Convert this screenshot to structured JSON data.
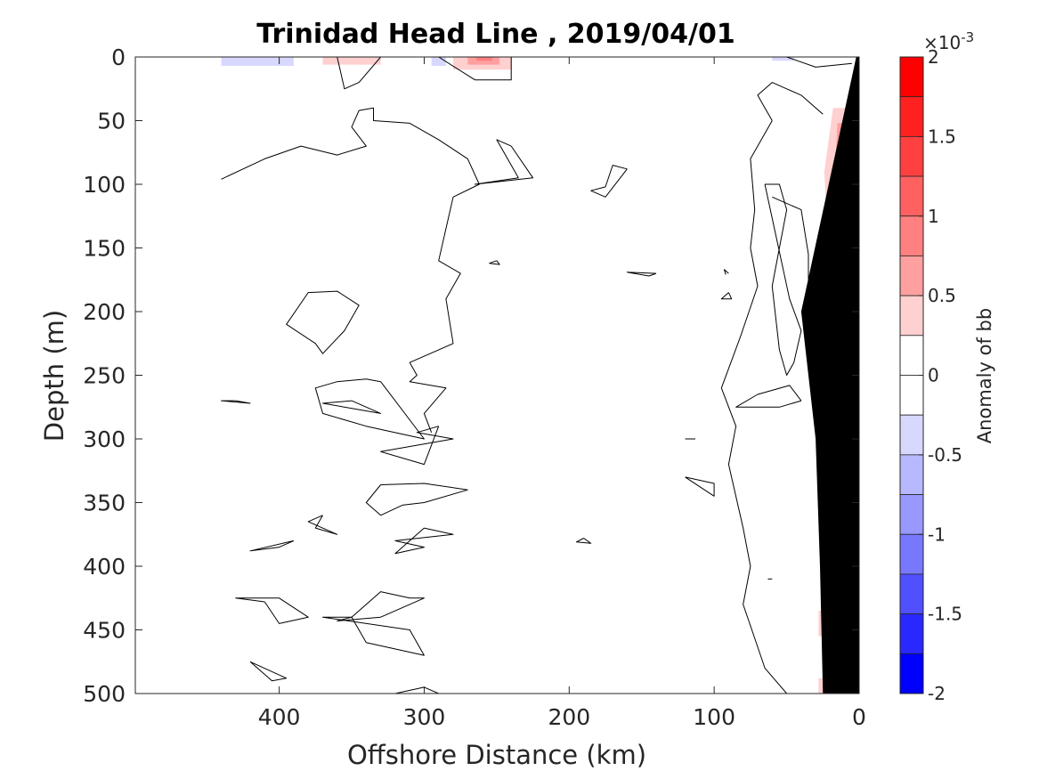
{
  "chart_data": {
    "type": "heatmap",
    "title": "Trinidad Head Line , 2019/04/01",
    "xlabel": "Offshore Distance (km)",
    "ylabel": "Depth (m)",
    "x_reversed": true,
    "y_reversed": true,
    "xlim": [
      0,
      490
    ],
    "ylim": [
      0,
      500
    ],
    "x_ticks": [
      400,
      300,
      200,
      100,
      0
    ],
    "y_ticks": [
      0,
      50,
      100,
      150,
      200,
      250,
      300,
      350,
      400,
      450,
      500
    ],
    "colorbar": {
      "label": "Anomaly of bb",
      "exponent_label": "×10",
      "exponent_power": "-3",
      "clim": [
        -2,
        2
      ],
      "tick_values": [
        2,
        1.5,
        1,
        0.5,
        0,
        -0.5,
        -1,
        -1.5,
        -2
      ],
      "tick_labels": [
        "2",
        "1.5",
        "1",
        "0.5",
        "0",
        "-0.5",
        "-1",
        "-1.5",
        "-2"
      ],
      "levels": [
        {
          "from": 1.75,
          "to": 2.0,
          "color": "#ff0000"
        },
        {
          "from": 1.5,
          "to": 1.75,
          "color": "#ff2020"
        },
        {
          "from": 1.25,
          "to": 1.5,
          "color": "#ff4040"
        },
        {
          "from": 1.0,
          "to": 1.25,
          "color": "#ff6060"
        },
        {
          "from": 0.75,
          "to": 1.0,
          "color": "#ff8080"
        },
        {
          "from": 0.5,
          "to": 0.75,
          "color": "#ffa0a0"
        },
        {
          "from": 0.25,
          "to": 0.5,
          "color": "#ffd0d0"
        },
        {
          "from": 0.0,
          "to": 0.25,
          "color": "#ffffff"
        },
        {
          "from": -0.25,
          "to": 0.0,
          "color": "#ffffff"
        },
        {
          "from": -0.5,
          "to": -0.25,
          "color": "#d8d8ff"
        },
        {
          "from": -0.75,
          "to": -0.5,
          "color": "#b8b8ff"
        },
        {
          "from": -1.0,
          "to": -0.75,
          "color": "#9898ff"
        },
        {
          "from": -1.25,
          "to": -1.0,
          "color": "#7878ff"
        },
        {
          "from": -1.5,
          "to": -1.25,
          "color": "#5050ff"
        },
        {
          "from": -1.75,
          "to": -1.5,
          "color": "#2828ff"
        },
        {
          "from": -2.0,
          "to": -1.75,
          "color": "#0000ff"
        }
      ]
    },
    "bathymetry": {
      "color": "#000000",
      "points": [
        [
          0,
          0
        ],
        [
          0,
          500
        ],
        [
          25,
          500
        ],
        [
          27,
          400
        ],
        [
          30,
          300
        ],
        [
          40,
          200
        ],
        [
          2,
          0
        ]
      ]
    },
    "anomaly_patches": [
      {
        "color": "#ffd0d0",
        "points": [
          [
            18,
            40
          ],
          [
            5,
            40
          ],
          [
            5,
            140
          ],
          [
            12,
            170
          ],
          [
            22,
            140
          ],
          [
            24,
            90
          ]
        ]
      },
      {
        "color": "#ffa0a0",
        "points": [
          [
            15,
            52
          ],
          [
            7,
            52
          ],
          [
            6,
            95
          ],
          [
            12,
            95
          ],
          [
            16,
            75
          ]
        ]
      },
      {
        "color": "#ff6060",
        "points": [
          [
            12,
            58
          ],
          [
            8,
            58
          ],
          [
            7,
            88
          ],
          [
            11,
            88
          ],
          [
            13,
            72
          ]
        ]
      },
      {
        "color": "#ff4040",
        "points": [
          [
            10,
            64
          ],
          [
            8,
            64
          ],
          [
            8,
            82
          ],
          [
            10,
            82
          ]
        ]
      },
      {
        "color": "#ffd0d0",
        "points": [
          [
            25,
            155
          ],
          [
            20,
            155
          ],
          [
            19,
            190
          ],
          [
            23,
            195
          ],
          [
            28,
            175
          ]
        ]
      },
      {
        "color": "#ffa0a0",
        "points": [
          [
            22,
            162
          ],
          [
            20,
            162
          ],
          [
            20,
            182
          ],
          [
            23,
            180
          ]
        ]
      },
      {
        "color": "#ffd0d0",
        "points": [
          [
            24,
            263
          ],
          [
            20,
            263
          ],
          [
            20,
            280
          ],
          [
            24,
            280
          ]
        ]
      },
      {
        "color": "#ffd0d0",
        "points": [
          [
            24,
            328
          ],
          [
            20,
            328
          ],
          [
            20,
            348
          ],
          [
            24,
            348
          ]
        ]
      },
      {
        "color": "#ffd0d0",
        "points": [
          [
            26,
            395
          ],
          [
            22,
            395
          ],
          [
            22,
            405
          ],
          [
            26,
            405
          ]
        ]
      },
      {
        "color": "#ffd0d0",
        "points": [
          [
            28,
            435
          ],
          [
            22,
            435
          ],
          [
            22,
            455
          ],
          [
            28,
            455
          ]
        ]
      },
      {
        "color": "#ffd0d0",
        "points": [
          [
            28,
            488
          ],
          [
            24,
            488
          ],
          [
            24,
            500
          ],
          [
            28,
            500
          ]
        ]
      },
      {
        "color": "#ffd0d0",
        "points": [
          [
            370,
            0
          ],
          [
            330,
            0
          ],
          [
            330,
            6
          ],
          [
            370,
            6
          ]
        ]
      },
      {
        "color": "#ffd0d0",
        "points": [
          [
            280,
            0
          ],
          [
            240,
            0
          ],
          [
            240,
            10
          ],
          [
            280,
            10
          ]
        ]
      },
      {
        "color": "#ffa0a0",
        "points": [
          [
            270,
            0
          ],
          [
            248,
            0
          ],
          [
            248,
            6
          ],
          [
            270,
            6
          ]
        ]
      },
      {
        "color": "#ff8080",
        "points": [
          [
            264,
            0
          ],
          [
            253,
            0
          ],
          [
            253,
            3
          ],
          [
            264,
            3
          ]
        ]
      },
      {
        "color": "#d8d8ff",
        "points": [
          [
            440,
            0
          ],
          [
            390,
            0
          ],
          [
            390,
            7
          ],
          [
            440,
            7
          ]
        ]
      },
      {
        "color": "#d8d8ff",
        "points": [
          [
            295,
            0
          ],
          [
            285,
            0
          ],
          [
            285,
            7
          ],
          [
            295,
            7
          ]
        ]
      },
      {
        "color": "#d8d8ff",
        "points": [
          [
            60,
            0
          ],
          [
            45,
            0
          ],
          [
            45,
            3
          ],
          [
            60,
            3
          ]
        ]
      }
    ],
    "zero_contours": [
      [
        [
          440,
          96
        ],
        [
          410,
          80
        ],
        [
          385,
          70
        ],
        [
          360,
          77
        ],
        [
          340,
          70
        ],
        [
          350,
          55
        ],
        [
          345,
          42
        ],
        [
          335,
          40
        ],
        [
          335,
          50
        ],
        [
          310,
          52
        ],
        [
          290,
          65
        ],
        [
          270,
          80
        ],
        [
          262,
          100
        ],
        [
          280,
          110
        ],
        [
          290,
          160
        ],
        [
          275,
          170
        ],
        [
          285,
          190
        ],
        [
          280,
          225
        ],
        [
          310,
          240
        ],
        [
          305,
          250
        ],
        [
          310,
          255
        ],
        [
          285,
          260
        ],
        [
          300,
          280
        ],
        [
          295,
          295
        ]
      ],
      [
        [
          330,
          0
        ],
        [
          345,
          20
        ],
        [
          355,
          25
        ],
        [
          360,
          0
        ]
      ],
      [
        [
          290,
          0
        ],
        [
          265,
          18
        ],
        [
          240,
          18
        ],
        [
          240,
          0
        ]
      ],
      [
        [
          68,
          0
        ],
        [
          80,
          0
        ],
        [
          90,
          0
        ]
      ],
      [
        [
          50,
          0
        ],
        [
          30,
          8
        ],
        [
          5,
          5
        ]
      ],
      [
        [
          60,
          50
        ],
        [
          65,
          40
        ],
        [
          70,
          30
        ],
        [
          60,
          20
        ],
        [
          50,
          25
        ],
        [
          40,
          30
        ],
        [
          25,
          45
        ]
      ],
      [
        [
          60,
          50
        ],
        [
          75,
          80
        ],
        [
          72,
          120
        ],
        [
          75,
          150
        ],
        [
          70,
          180
        ],
        [
          82,
          220
        ],
        [
          95,
          260
        ],
        [
          85,
          290
        ],
        [
          90,
          320
        ],
        [
          80,
          370
        ],
        [
          75,
          400
        ],
        [
          80,
          430
        ],
        [
          65,
          480
        ],
        [
          50,
          500
        ]
      ],
      [
        [
          240,
          70
        ],
        [
          250,
          65
        ],
        [
          235,
          95
        ],
        [
          265,
          100
        ],
        [
          225,
          95
        ],
        [
          240,
          70
        ]
      ],
      [
        [
          160,
          88
        ],
        [
          170,
          85
        ],
        [
          175,
          102
        ],
        [
          185,
          105
        ],
        [
          175,
          110
        ],
        [
          160,
          88
        ]
      ],
      [
        [
          65,
          100
        ],
        [
          55,
          100
        ],
        [
          50,
          120
        ],
        [
          55,
          150
        ],
        [
          60,
          180
        ],
        [
          55,
          230
        ],
        [
          50,
          250
        ],
        [
          45,
          240
        ],
        [
          40,
          215
        ],
        [
          48,
          190
        ],
        [
          65,
          100
        ]
      ],
      [
        [
          60,
          110
        ],
        [
          40,
          120
        ],
        [
          35,
          155
        ],
        [
          35,
          195
        ],
        [
          20,
          210
        ]
      ],
      [
        [
          40,
          270
        ],
        [
          48,
          258
        ],
        [
          70,
          265
        ],
        [
          85,
          275
        ],
        [
          55,
          275
        ],
        [
          40,
          270
        ]
      ],
      [
        [
          380,
          185
        ],
        [
          360,
          184
        ],
        [
          345,
          195
        ],
        [
          355,
          215
        ],
        [
          370,
          233
        ],
        [
          375,
          225
        ],
        [
          395,
          210
        ],
        [
          380,
          185
        ]
      ],
      [
        [
          330,
          255
        ],
        [
          340,
          253
        ],
        [
          360,
          255
        ],
        [
          375,
          260
        ],
        [
          370,
          280
        ],
        [
          340,
          290
        ],
        [
          300,
          300
        ],
        [
          330,
          255
        ]
      ],
      [
        [
          350,
          270
        ],
        [
          370,
          272
        ],
        [
          330,
          280
        ],
        [
          350,
          270
        ]
      ],
      [
        [
          290,
          290
        ],
        [
          305,
          295
        ],
        [
          280,
          300
        ],
        [
          330,
          310
        ],
        [
          300,
          320
        ],
        [
          290,
          290
        ]
      ],
      [
        [
          330,
          336
        ],
        [
          300,
          335
        ],
        [
          270,
          340
        ],
        [
          300,
          350
        ],
        [
          315,
          352
        ],
        [
          330,
          360
        ],
        [
          340,
          350
        ],
        [
          330,
          336
        ]
      ],
      [
        [
          370,
          360
        ],
        [
          380,
          365
        ],
        [
          360,
          375
        ],
        [
          375,
          370
        ],
        [
          370,
          360
        ]
      ],
      [
        [
          300,
          370
        ],
        [
          280,
          375
        ],
        [
          320,
          380
        ],
        [
          300,
          385
        ],
        [
          320,
          390
        ],
        [
          300,
          370
        ]
      ],
      [
        [
          310,
          425
        ],
        [
          300,
          425
        ],
        [
          330,
          440
        ],
        [
          360,
          443
        ],
        [
          350,
          440
        ],
        [
          330,
          420
        ],
        [
          310,
          425
        ]
      ],
      [
        [
          410,
          428
        ],
        [
          430,
          425
        ],
        [
          400,
          425
        ],
        [
          380,
          440
        ],
        [
          400,
          445
        ],
        [
          410,
          428
        ]
      ],
      [
        [
          350,
          440
        ],
        [
          370,
          440
        ],
        [
          310,
          450
        ],
        [
          300,
          470
        ],
        [
          340,
          460
        ],
        [
          350,
          440
        ]
      ],
      [
        [
          420,
          475
        ],
        [
          405,
          490
        ],
        [
          395,
          488
        ],
        [
          420,
          475
        ]
      ],
      [
        [
          320,
          500
        ],
        [
          300,
          495
        ],
        [
          290,
          500
        ]
      ],
      [
        [
          390,
          380
        ],
        [
          400,
          385
        ],
        [
          420,
          388
        ],
        [
          390,
          380
        ]
      ],
      [
        [
          430,
          270
        ],
        [
          440,
          270
        ],
        [
          420,
          272
        ],
        [
          430,
          270
        ]
      ],
      [
        [
          140,
          170
        ],
        [
          160,
          169
        ],
        [
          145,
          172
        ],
        [
          140,
          170
        ]
      ],
      [
        [
          120,
          300
        ],
        [
          113,
          300
        ]
      ],
      [
        [
          120,
          330
        ],
        [
          100,
          335
        ],
        [
          100,
          345
        ],
        [
          120,
          330
        ]
      ],
      [
        [
          190,
          378
        ],
        [
          185,
          382
        ],
        [
          195,
          381
        ],
        [
          190,
          378
        ]
      ],
      [
        [
          90,
          170
        ],
        [
          93,
          167
        ],
        [
          92,
          171
        ]
      ],
      [
        [
          90,
          185
        ],
        [
          95,
          190
        ],
        [
          88,
          190
        ],
        [
          90,
          185
        ]
      ],
      [
        [
          60,
          410
        ],
        [
          63,
          410
        ]
      ],
      [
        [
          250,
          160
        ],
        [
          255,
          162
        ],
        [
          248,
          163
        ],
        [
          250,
          160
        ]
      ]
    ]
  }
}
